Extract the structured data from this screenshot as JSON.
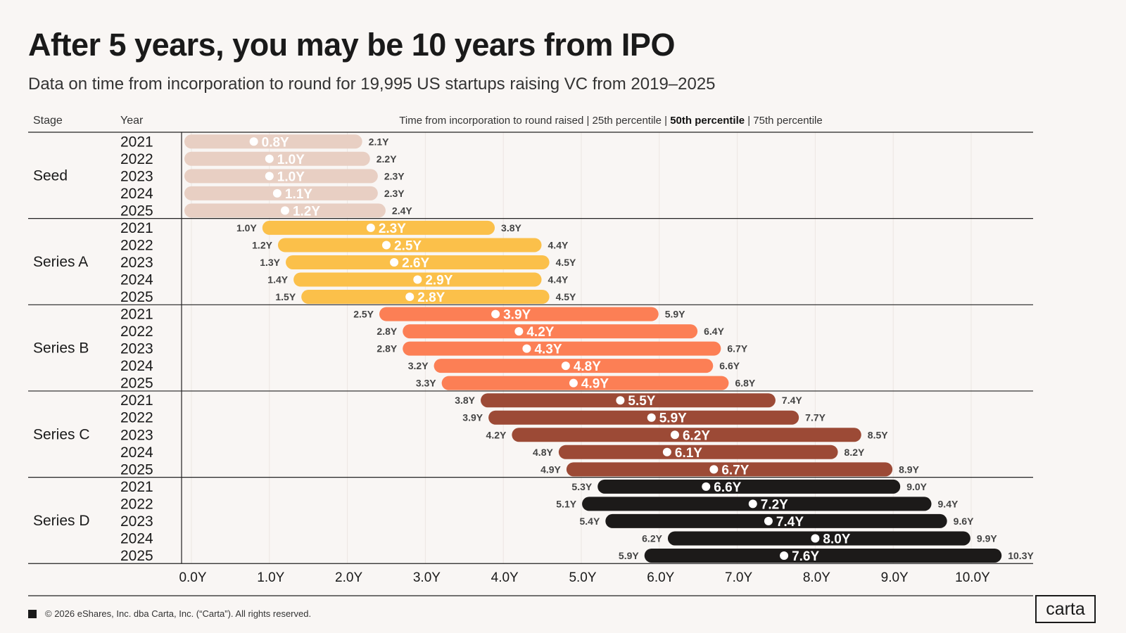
{
  "title": "After 5 years, you may be 10 years from IPO",
  "subtitle": "Data on time from incorporation to round for 19,995 US startups raising VC from 2019–2025",
  "footer": "© 2026 eShares, Inc. dba Carta, Inc. (“Carta”). All rights reserved.",
  "logo": "carta",
  "chart_data": {
    "type": "bar",
    "orientation": "horizontal-range",
    "columns": {
      "stage": "Stage",
      "year": "Year",
      "header_parts": [
        "Time from incorporation to round raised | 25th percentile | ",
        "50th percentile",
        " | 75th percentile"
      ]
    },
    "xlim": [
      0,
      10.3
    ],
    "x_ticks": [
      "0.0Y",
      "1.0Y",
      "2.0Y",
      "3.0Y",
      "4.0Y",
      "5.0Y",
      "6.0Y",
      "7.0Y",
      "8.0Y",
      "9.0Y",
      "10.0Y"
    ],
    "grid": true,
    "groups": [
      {
        "stage": "Seed",
        "color": "#e8cfc3",
        "rows": [
          {
            "year": "2021",
            "p25": "0.0Y",
            "p50": "0.8Y",
            "p75": "2.1Y"
          },
          {
            "year": "2022",
            "p25": "0.0Y",
            "p50": "1.0Y",
            "p75": "2.2Y"
          },
          {
            "year": "2023",
            "p25": "0.0Y",
            "p50": "1.0Y",
            "p75": "2.3Y"
          },
          {
            "year": "2024",
            "p25": "0.0Y",
            "p50": "1.1Y",
            "p75": "2.3Y"
          },
          {
            "year": "2025",
            "p25": "0.0Y",
            "p50": "1.2Y",
            "p75": "2.4Y"
          }
        ]
      },
      {
        "stage": "Series A",
        "color": "#fbc04a",
        "rows": [
          {
            "year": "2021",
            "p25": "1.0Y",
            "p50": "2.3Y",
            "p75": "3.8Y"
          },
          {
            "year": "2022",
            "p25": "1.2Y",
            "p50": "2.5Y",
            "p75": "4.4Y"
          },
          {
            "year": "2023",
            "p25": "1.3Y",
            "p50": "2.6Y",
            "p75": "4.5Y"
          },
          {
            "year": "2024",
            "p25": "1.4Y",
            "p50": "2.9Y",
            "p75": "4.4Y"
          },
          {
            "year": "2025",
            "p25": "1.5Y",
            "p50": "2.8Y",
            "p75": "4.5Y"
          }
        ]
      },
      {
        "stage": "Series B",
        "color": "#fc7f55",
        "rows": [
          {
            "year": "2021",
            "p25": "2.5Y",
            "p50": "3.9Y",
            "p75": "5.9Y"
          },
          {
            "year": "2022",
            "p25": "2.8Y",
            "p50": "4.2Y",
            "p75": "6.4Y"
          },
          {
            "year": "2023",
            "p25": "2.8Y",
            "p50": "4.3Y",
            "p75": "6.7Y"
          },
          {
            "year": "2024",
            "p25": "3.2Y",
            "p50": "4.8Y",
            "p75": "6.6Y"
          },
          {
            "year": "2025",
            "p25": "3.3Y",
            "p50": "4.9Y",
            "p75": "6.8Y"
          }
        ]
      },
      {
        "stage": "Series C",
        "color": "#9c4a36",
        "rows": [
          {
            "year": "2021",
            "p25": "3.8Y",
            "p50": "5.5Y",
            "p75": "7.4Y"
          },
          {
            "year": "2022",
            "p25": "3.9Y",
            "p50": "5.9Y",
            "p75": "7.7Y"
          },
          {
            "year": "2023",
            "p25": "4.2Y",
            "p50": "6.2Y",
            "p75": "8.5Y"
          },
          {
            "year": "2024",
            "p25": "4.8Y",
            "p50": "6.1Y",
            "p75": "8.2Y"
          },
          {
            "year": "2025",
            "p25": "4.9Y",
            "p50": "6.7Y",
            "p75": "8.9Y"
          }
        ]
      },
      {
        "stage": "Series D",
        "color": "#1c1a19",
        "rows": [
          {
            "year": "2021",
            "p25": "5.3Y",
            "p50": "6.6Y",
            "p75": "9.0Y"
          },
          {
            "year": "2022",
            "p25": "5.1Y",
            "p50": "7.2Y",
            "p75": "9.4Y"
          },
          {
            "year": "2023",
            "p25": "5.4Y",
            "p50": "7.4Y",
            "p75": "9.6Y"
          },
          {
            "year": "2024",
            "p25": "6.2Y",
            "p50": "8.0Y",
            "p75": "9.9Y"
          },
          {
            "year": "2025",
            "p25": "5.9Y",
            "p50": "7.6Y",
            "p75": "10.3Y"
          }
        ]
      }
    ]
  }
}
